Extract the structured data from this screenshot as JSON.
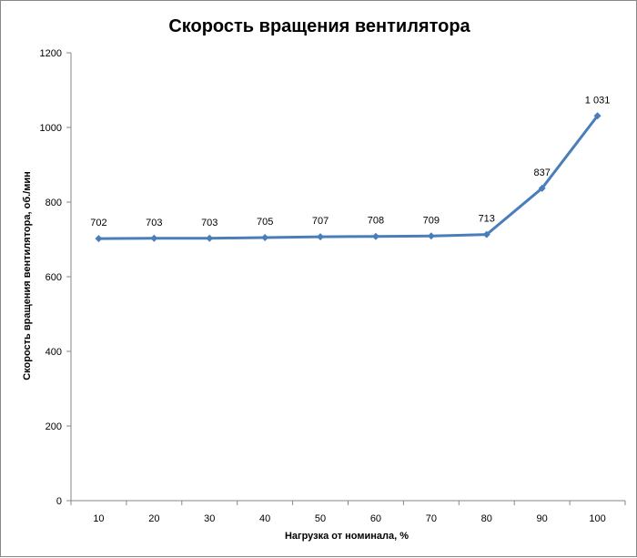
{
  "chart_data": {
    "type": "line",
    "title": "Скорость вращения вентилятора",
    "xlabel": "Нагрузка  от номинала,  %",
    "ylabel": "Скорость  вращения  вентилятора,  об./мин",
    "categories": [
      "10",
      "20",
      "30",
      "40",
      "50",
      "60",
      "70",
      "80",
      "90",
      "100"
    ],
    "series": [
      {
        "values": [
          702,
          703,
          703,
          705,
          707,
          708,
          709,
          713,
          837,
          1031
        ],
        "labels": [
          "702",
          "703",
          "703",
          "705",
          "707",
          "708",
          "709",
          "713",
          "837",
          "1 031"
        ]
      }
    ],
    "ylim": [
      0,
      1200
    ],
    "yticks": [
      0,
      200,
      400,
      600,
      800,
      1000,
      1200
    ],
    "grid": false,
    "legend": "none",
    "line_color": "#4A7EBB"
  }
}
